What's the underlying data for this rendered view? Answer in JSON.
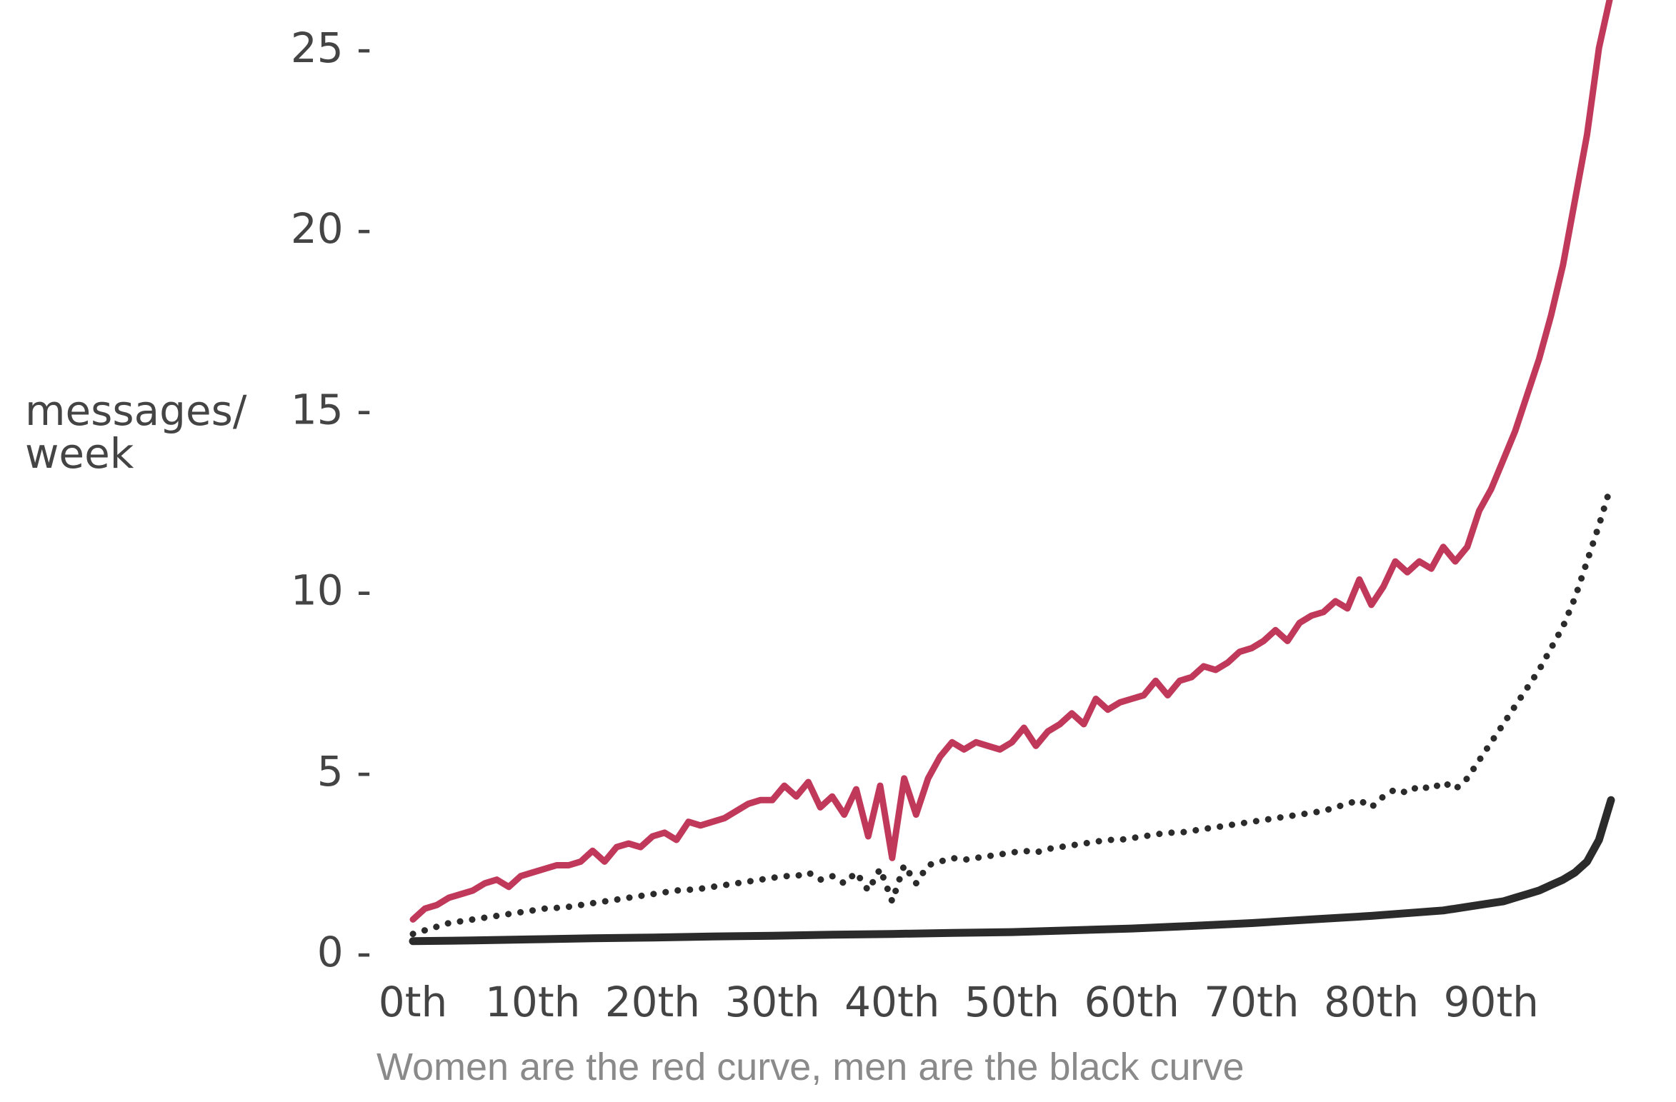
{
  "chart_data": {
    "type": "line",
    "title": "",
    "ylabel_lines": [
      "messages/",
      "week"
    ],
    "caption": "Women are the red curve, men are the black curve",
    "xlim": [
      0,
      100
    ],
    "ylim": [
      0,
      26.5
    ],
    "x_ticks": [
      {
        "value": 0,
        "label": "0th"
      },
      {
        "value": 10,
        "label": "10th"
      },
      {
        "value": 20,
        "label": "20th"
      },
      {
        "value": 30,
        "label": "30th"
      },
      {
        "value": 40,
        "label": "40th"
      },
      {
        "value": 50,
        "label": "50th"
      },
      {
        "value": 60,
        "label": "60th"
      },
      {
        "value": 70,
        "label": "70th"
      },
      {
        "value": 80,
        "label": "80th"
      },
      {
        "value": 90,
        "label": "90th"
      }
    ],
    "y_ticks": [
      {
        "value": 0,
        "label": "0 -"
      },
      {
        "value": 5,
        "label": "5 -"
      },
      {
        "value": 10,
        "label": "10 -"
      },
      {
        "value": 15,
        "label": "15 -"
      },
      {
        "value": 20,
        "label": "20 -"
      },
      {
        "value": 25,
        "label": "25 -"
      }
    ],
    "grid": false,
    "colors": {
      "red": "#c0395a",
      "black": "#2b2b2b",
      "dotted": "#2b2b2b"
    },
    "series": [
      {
        "key": "red",
        "style": "solid",
        "x": [
          0,
          1,
          2,
          3,
          4,
          5,
          6,
          7,
          8,
          9,
          10,
          11,
          12,
          13,
          14,
          15,
          16,
          17,
          18,
          19,
          20,
          21,
          22,
          23,
          24,
          25,
          26,
          27,
          28,
          29,
          30,
          31,
          32,
          33,
          34,
          35,
          36,
          37,
          38,
          39,
          40,
          41,
          42,
          43,
          44,
          45,
          46,
          47,
          48,
          49,
          50,
          51,
          52,
          53,
          54,
          55,
          56,
          57,
          58,
          59,
          60,
          61,
          62,
          63,
          64,
          65,
          66,
          67,
          68,
          69,
          70,
          71,
          72,
          73,
          74,
          75,
          76,
          77,
          78,
          79,
          80,
          81,
          82,
          83,
          84,
          85,
          86,
          87,
          88,
          89,
          90,
          91,
          92,
          93,
          94,
          95,
          96,
          97,
          98,
          99,
          100
        ],
        "y": [
          0.9,
          1.2,
          1.3,
          1.5,
          1.6,
          1.7,
          1.9,
          2.0,
          1.8,
          2.1,
          2.2,
          2.3,
          2.4,
          2.4,
          2.5,
          2.8,
          2.5,
          2.9,
          3.0,
          2.9,
          3.2,
          3.3,
          3.1,
          3.6,
          3.5,
          3.6,
          3.7,
          3.9,
          4.1,
          4.2,
          4.2,
          4.6,
          4.3,
          4.7,
          4.0,
          4.3,
          3.8,
          4.5,
          3.2,
          4.6,
          2.6,
          4.8,
          3.8,
          4.8,
          5.4,
          5.8,
          5.6,
          5.8,
          5.7,
          5.6,
          5.8,
          6.2,
          5.7,
          6.1,
          6.3,
          6.6,
          6.3,
          7.0,
          6.7,
          6.9,
          7.0,
          7.1,
          7.5,
          7.1,
          7.5,
          7.6,
          7.9,
          7.8,
          8.0,
          8.3,
          8.4,
          8.6,
          8.9,
          8.6,
          9.1,
          9.3,
          9.4,
          9.7,
          9.5,
          10.3,
          9.6,
          10.1,
          10.8,
          10.5,
          10.8,
          10.6,
          11.2,
          10.8,
          11.2,
          12.2,
          12.8,
          13.6,
          14.4,
          15.4,
          16.4,
          17.6,
          19.0,
          20.8,
          22.6,
          25.0,
          26.5
        ]
      },
      {
        "key": "dotted",
        "style": "dotted",
        "x": [
          0,
          1,
          2,
          3,
          4,
          5,
          6,
          7,
          8,
          9,
          10,
          11,
          12,
          13,
          14,
          15,
          16,
          17,
          18,
          19,
          20,
          21,
          22,
          23,
          24,
          25,
          26,
          27,
          28,
          29,
          30,
          31,
          32,
          33,
          34,
          35,
          36,
          37,
          38,
          39,
          40,
          41,
          42,
          43,
          44,
          45,
          46,
          47,
          48,
          49,
          50,
          51,
          52,
          53,
          54,
          55,
          56,
          57,
          58,
          59,
          60,
          61,
          62,
          63,
          64,
          65,
          66,
          67,
          68,
          69,
          70,
          71,
          72,
          73,
          74,
          75,
          76,
          77,
          78,
          79,
          80,
          81,
          82,
          83,
          84,
          85,
          86,
          87,
          88,
          89,
          90,
          91,
          92,
          93,
          94,
          95,
          96,
          97,
          98,
          99,
          100
        ],
        "y": [
          0.5,
          0.6,
          0.7,
          0.8,
          0.85,
          0.9,
          0.95,
          1.0,
          1.05,
          1.1,
          1.15,
          1.2,
          1.22,
          1.25,
          1.3,
          1.35,
          1.4,
          1.45,
          1.5,
          1.55,
          1.6,
          1.65,
          1.7,
          1.72,
          1.75,
          1.8,
          1.85,
          1.9,
          1.95,
          2.0,
          2.05,
          2.1,
          2.1,
          2.2,
          2.0,
          2.1,
          1.9,
          2.2,
          1.7,
          2.3,
          1.4,
          2.4,
          1.9,
          2.4,
          2.5,
          2.6,
          2.55,
          2.6,
          2.65,
          2.7,
          2.75,
          2.8,
          2.75,
          2.85,
          2.9,
          2.95,
          3.0,
          3.05,
          3.1,
          3.1,
          3.15,
          3.2,
          3.25,
          3.3,
          3.3,
          3.35,
          3.4,
          3.45,
          3.5,
          3.55,
          3.6,
          3.65,
          3.7,
          3.75,
          3.8,
          3.85,
          3.9,
          4.0,
          4.1,
          4.2,
          4.0,
          4.3,
          4.5,
          4.4,
          4.6,
          4.5,
          4.7,
          4.5,
          4.8,
          5.3,
          5.8,
          6.3,
          6.8,
          7.3,
          7.8,
          8.4,
          9.0,
          9.8,
          10.8,
          11.8,
          12.9
        ]
      },
      {
        "key": "black",
        "style": "solid",
        "x": [
          0,
          5,
          10,
          15,
          20,
          25,
          30,
          35,
          40,
          45,
          50,
          55,
          60,
          65,
          70,
          75,
          80,
          82,
          84,
          86,
          88,
          90,
          91,
          92,
          93,
          94,
          95,
          96,
          97,
          98,
          99,
          100
        ],
        "y": [
          0.3,
          0.32,
          0.35,
          0.38,
          0.4,
          0.43,
          0.45,
          0.48,
          0.5,
          0.53,
          0.55,
          0.6,
          0.65,
          0.72,
          0.8,
          0.9,
          1.0,
          1.05,
          1.1,
          1.15,
          1.25,
          1.35,
          1.4,
          1.5,
          1.6,
          1.7,
          1.85,
          2.0,
          2.2,
          2.5,
          3.1,
          4.2
        ]
      }
    ]
  }
}
